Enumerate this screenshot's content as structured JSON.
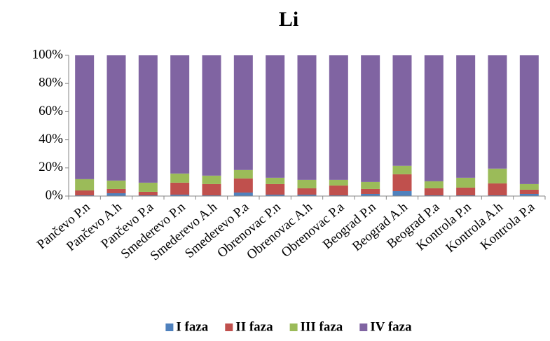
{
  "chart_data": {
    "type": "stacked_bar_percent",
    "title": "Li",
    "categories": [
      "Pančevo P.n",
      "Pančevo A.h",
      "Pančevo P.a",
      "Smederevo P.n",
      "Smederevo A.h",
      "Smederevo P.a",
      "Obrenovac P.n",
      "Obrenovac A.h",
      "Obrenovac P.a",
      "Beograd P.n",
      "Beograd A.h",
      "Beograd P.a",
      "Kontrola P.n",
      "Kontrola A.h",
      "Kontrola P.a"
    ],
    "series": [
      {
        "name": "I faza",
        "color": "#4f81bd",
        "values": [
          0.5,
          2,
          0.5,
          1,
          0.5,
          2.5,
          1,
          1,
          0.5,
          1.5,
          3.5,
          0.5,
          0.5,
          0.5,
          1.5
        ]
      },
      {
        "name": "II faza",
        "color": "#c0504d",
        "values": [
          3.5,
          3,
          2.5,
          8.5,
          8,
          10,
          7.5,
          4.5,
          7,
          3.5,
          12,
          5,
          5.5,
          8.5,
          3
        ]
      },
      {
        "name": "III faza",
        "color": "#9bbb59",
        "values": [
          8,
          6,
          6.5,
          6.5,
          6,
          6,
          4.5,
          6,
          4,
          5,
          6,
          5,
          7,
          10.5,
          4
        ]
      },
      {
        "name": "IV faza",
        "color": "#8064a2",
        "values": [
          88,
          89,
          90.5,
          84,
          85.5,
          81.5,
          87,
          88.5,
          88.5,
          90,
          78.5,
          89.5,
          87,
          80.5,
          91.5
        ]
      }
    ],
    "ylim": [
      0,
      100
    ],
    "yticks": [
      {
        "value": 0,
        "label": "0%"
      },
      {
        "value": 20,
        "label": "20%"
      },
      {
        "value": 40,
        "label": "40%"
      },
      {
        "value": 60,
        "label": "60%"
      },
      {
        "value": 80,
        "label": "80%"
      },
      {
        "value": 100,
        "label": "100%"
      }
    ],
    "legend": "bottom"
  }
}
